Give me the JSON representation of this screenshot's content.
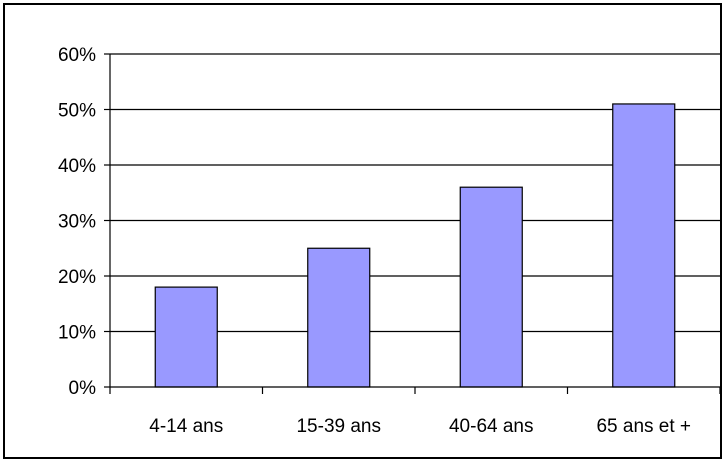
{
  "chart_data": {
    "type": "bar",
    "categories": [
      "4-14 ans",
      "15-39 ans",
      "40-64 ans",
      "65 ans et +"
    ],
    "values": [
      18,
      25,
      36,
      51
    ],
    "value_format": "percent",
    "y_ticks": [
      "0%",
      "10%",
      "20%",
      "30%",
      "40%",
      "50%",
      "60%"
    ],
    "ylim": [
      0,
      60
    ],
    "grid": true,
    "legend": "none",
    "colors": {
      "bar_fill": "#9999ff",
      "bar_stroke": "#000000",
      "gridline": "#000000",
      "axis": "#000000"
    }
  }
}
